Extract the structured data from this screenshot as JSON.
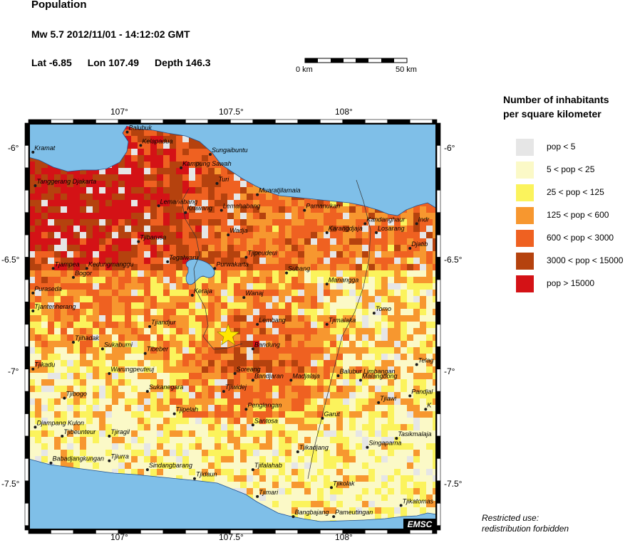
{
  "header": {
    "title": "Population",
    "event": "Mw 5.7  2012/11/01 - 14:12:02 GMT",
    "lat": "Lat -6.85",
    "lon": "Lon 107.49",
    "depth": "Depth 146.3"
  },
  "scale_bar": {
    "left_label": "0 km",
    "right_label": "50 km"
  },
  "axes": {
    "top": [
      "107°",
      "107.5°",
      "108°"
    ],
    "bottom": [
      "107°",
      "107.5°",
      "108°"
    ],
    "left": [
      "-6°",
      "-6.5°",
      "-7°",
      "-7.5°"
    ],
    "right": [
      "-6°",
      "-6.5°",
      "-7°",
      "-7.5°"
    ]
  },
  "legend": {
    "title_line1": "Number of inhabitants",
    "title_line2": "per square kilometer",
    "items": [
      {
        "label": "pop < 5",
        "color": "#e6e6e6"
      },
      {
        "label": "5 < pop < 25",
        "color": "#fbf9c7"
      },
      {
        "label": "25 < pop < 125",
        "color": "#fbf35c"
      },
      {
        "label": "125 < pop < 600",
        "color": "#f7972f"
      },
      {
        "label": "600 < pop < 3000",
        "color": "#ef6121"
      },
      {
        "label": "3000 < pop < 15000",
        "color": "#b5420e"
      },
      {
        "label": "pop > 15000",
        "color": "#d41216"
      }
    ]
  },
  "places": [
    {
      "name": "Balubuk",
      "lon": 107.04,
      "lat": -5.94
    },
    {
      "name": "Kelapadua",
      "lon": 107.1,
      "lat": -6.0
    },
    {
      "name": "Kramat",
      "lon": 106.62,
      "lat": -6.03
    },
    {
      "name": "Sungaibuntu",
      "lon": 107.41,
      "lat": -6.04
    },
    {
      "name": "Kampung Sawah",
      "lon": 107.28,
      "lat": -6.1
    },
    {
      "name": "Turi",
      "lon": 107.44,
      "lat": -6.17
    },
    {
      "name": "Tanggerang Djakarta",
      "lon": 106.63,
      "lat": -6.18
    },
    {
      "name": "Muaratjilamaia",
      "lon": 107.62,
      "lat": -6.22
    },
    {
      "name": "Lemanabang",
      "lon": 107.18,
      "lat": -6.27
    },
    {
      "name": "Krawang",
      "lon": 107.3,
      "lat": -6.3
    },
    {
      "name": "Lemahabang",
      "lon": 107.46,
      "lat": -6.29
    },
    {
      "name": "Pamanukan",
      "lon": 107.83,
      "lat": -6.29
    },
    {
      "name": "Kandanghaur",
      "lon": 108.1,
      "lat": -6.35
    },
    {
      "name": "Indr",
      "lon": 108.33,
      "lat": -6.35
    },
    {
      "name": "Karangdjaja",
      "lon": 107.93,
      "lat": -6.39
    },
    {
      "name": "Losarang",
      "lon": 108.15,
      "lat": -6.39
    },
    {
      "name": "Wadja",
      "lon": 107.49,
      "lat": -6.4
    },
    {
      "name": "Tjibarusa",
      "lon": 107.09,
      "lat": -6.43
    },
    {
      "name": "Djatib",
      "lon": 108.3,
      "lat": -6.46
    },
    {
      "name": "Tjipeudeui",
      "lon": 107.57,
      "lat": -6.5
    },
    {
      "name": "Tegalwaru",
      "lon": 107.22,
      "lat": -6.52
    },
    {
      "name": "Tjampea",
      "lon": 106.71,
      "lat": -6.55
    },
    {
      "name": "Kedungmanggu",
      "lon": 106.86,
      "lat": -6.55
    },
    {
      "name": "Purwakarta",
      "lon": 107.43,
      "lat": -6.55
    },
    {
      "name": "Subang",
      "lon": 107.75,
      "lat": -6.57
    },
    {
      "name": "Bogor",
      "lon": 106.8,
      "lat": -6.59
    },
    {
      "name": "Manangga",
      "lon": 107.93,
      "lat": -6.62
    },
    {
      "name": "Puraseda",
      "lon": 106.62,
      "lat": -6.66
    },
    {
      "name": "Keraja",
      "lon": 107.33,
      "lat": -6.67
    },
    {
      "name": "Wanaj",
      "lon": 107.56,
      "lat": -6.68
    },
    {
      "name": "Tjantenherang",
      "lon": 106.62,
      "lat": -6.74
    },
    {
      "name": "Tomo",
      "lon": 108.14,
      "lat": -6.75
    },
    {
      "name": "Lembang",
      "lon": 107.62,
      "lat": -6.8
    },
    {
      "name": "Tjimalaka",
      "lon": 107.93,
      "lat": -6.8
    },
    {
      "name": "Tjiandjur",
      "lon": 107.14,
      "lat": -6.81
    },
    {
      "name": "Tjihadak",
      "lon": 106.8,
      "lat": -6.88
    },
    {
      "name": "Sukabumi",
      "lon": 106.93,
      "lat": -6.91
    },
    {
      "name": "Bandung",
      "lon": 107.6,
      "lat": -6.91
    },
    {
      "name": "Tibeber",
      "lon": 107.12,
      "lat": -6.93
    },
    {
      "name": "Tjikadu",
      "lon": 106.62,
      "lat": -7.0
    },
    {
      "name": "Telag",
      "lon": 108.33,
      "lat": -6.98
    },
    {
      "name": "Warungpeuteuj",
      "lon": 106.96,
      "lat": -7.02
    },
    {
      "name": "Soreang",
      "lon": 107.52,
      "lat": -7.02
    },
    {
      "name": "Balubur Limbangan",
      "lon": 107.98,
      "lat": -7.03
    },
    {
      "name": "Bandjaran",
      "lon": 107.6,
      "lat": -7.05
    },
    {
      "name": "Madjalaja",
      "lon": 107.77,
      "lat": -7.05
    },
    {
      "name": "Malangbong",
      "lon": 108.08,
      "lat": -7.05
    },
    {
      "name": "Sukanegara",
      "lon": 107.13,
      "lat": -7.1
    },
    {
      "name": "Tjiwidej",
      "lon": 107.47,
      "lat": -7.1
    },
    {
      "name": "Pandjal",
      "lon": 108.3,
      "lat": -7.12
    },
    {
      "name": "Tjibogo",
      "lon": 106.76,
      "lat": -7.13
    },
    {
      "name": "Tjiawi",
      "lon": 108.16,
      "lat": -7.15
    },
    {
      "name": "Penglengan",
      "lon": 107.57,
      "lat": -7.18
    },
    {
      "name": "K",
      "lon": 108.37,
      "lat": -7.18
    },
    {
      "name": "Tjipelah",
      "lon": 107.25,
      "lat": -7.2
    },
    {
      "name": "Garut",
      "lon": 107.91,
      "lat": -7.22
    },
    {
      "name": "Santosa",
      "lon": 107.6,
      "lat": -7.25
    },
    {
      "name": "Djampang Kulon",
      "lon": 106.63,
      "lat": -7.26
    },
    {
      "name": "Tjibeunteur",
      "lon": 106.75,
      "lat": -7.3
    },
    {
      "name": "Tjiragil",
      "lon": 106.96,
      "lat": -7.3
    },
    {
      "name": "Tasikmalaja",
      "lon": 108.24,
      "lat": -7.31
    },
    {
      "name": "Singaparna",
      "lon": 108.11,
      "lat": -7.35
    },
    {
      "name": "Tjikadjang",
      "lon": 107.8,
      "lat": -7.37
    },
    {
      "name": "Tjiurra",
      "lon": 106.96,
      "lat": -7.41
    },
    {
      "name": "Babadjangkungan",
      "lon": 106.7,
      "lat": -7.42
    },
    {
      "name": "Sindangbarang",
      "lon": 107.13,
      "lat": -7.45
    },
    {
      "name": "Tjifalahab",
      "lon": 107.6,
      "lat": -7.45
    },
    {
      "name": "Tjidaun",
      "lon": 107.34,
      "lat": -7.49
    },
    {
      "name": "Tjikolak",
      "lon": 107.95,
      "lat": -7.53
    },
    {
      "name": "Tjimari",
      "lon": 107.62,
      "lat": -7.57
    },
    {
      "name": "Tjikatomas",
      "lon": 108.26,
      "lat": -7.61
    },
    {
      "name": "Bangbajang",
      "lon": 107.78,
      "lat": -7.66
    },
    {
      "name": "Pameutingan",
      "lon": 107.96,
      "lat": -7.66
    }
  ],
  "epicenter": {
    "lon": 107.49,
    "lat": -6.85,
    "color": "#ffe600"
  },
  "sea_color": "#7fbfe8",
  "badge": "EMSC",
  "footer": {
    "line1": "Restricted use:",
    "line2": "redistribution forbidden"
  }
}
